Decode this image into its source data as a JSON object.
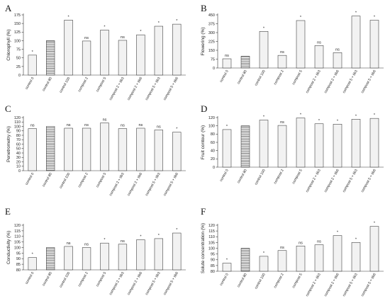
{
  "chart_data": [
    {
      "type": "bar",
      "panel": "A",
      "ylabel": "Chlorophyll (%)",
      "ylim": [
        0,
        175
      ],
      "yticks": [
        0,
        25,
        50,
        75,
        100,
        125,
        150,
        175
      ],
      "categories": [
        "control 0",
        "control 80",
        "control 100",
        "compost 2",
        "compost 5",
        "compost 2 + tib3",
        "compost 2 + tib6",
        "compost 5 + tib3",
        "compost 5 + tib6"
      ],
      "values": [
        58,
        100,
        160,
        99,
        131,
        101,
        117,
        142,
        148
      ],
      "significance": [
        "*",
        "",
        "*",
        "ns",
        "*",
        "ns",
        "*",
        "*",
        "*"
      ]
    },
    {
      "type": "bar",
      "panel": "B",
      "ylabel": "Flowering (%)",
      "ylim": [
        0,
        450
      ],
      "yticks": [
        0,
        75,
        150,
        225,
        300,
        375,
        450
      ],
      "categories": [
        "control 0",
        "control 80",
        "control 100",
        "compost 2",
        "compost 5",
        "compost 2 + tib3",
        "compost 2 + tib6",
        "compost 5 + tib3",
        "compost 5 + tib6"
      ],
      "values": [
        78,
        100,
        310,
        107,
        402,
        190,
        130,
        440,
        405
      ],
      "significance": [
        "ns",
        "",
        "*",
        "ns",
        "*",
        "ns",
        "ns",
        "*",
        "*"
      ]
    },
    {
      "type": "bar",
      "panel": "C",
      "ylabel": "Penetrometry (%)",
      "ylim": [
        0,
        120
      ],
      "yticks": [
        0,
        10,
        20,
        30,
        40,
        50,
        60,
        70,
        80,
        90,
        100,
        110,
        120
      ],
      "categories": [
        "control 0",
        "control 80",
        "control 100",
        "compost 2",
        "compost 5",
        "compost 2 + tib3",
        "compost 2 + tib6",
        "compost 5 + tib3",
        "compost 5 + tib6"
      ],
      "values": [
        95,
        100,
        96,
        96,
        108,
        95,
        96,
        92,
        87
      ],
      "significance": [
        "ns",
        "",
        "ns",
        "ns",
        "ns",
        "ns",
        "ns",
        "ns",
        "*"
      ]
    },
    {
      "type": "bar",
      "panel": "D",
      "ylabel": "Fruit contour (%)",
      "ylim": [
        0,
        120
      ],
      "yticks": [
        0,
        20,
        40,
        60,
        80,
        100,
        120
      ],
      "categories": [
        "control 0",
        "control 80",
        "control 100",
        "compost 2",
        "compost 5",
        "compost 2 + tib3",
        "compost 2 + tib6",
        "compost 5 + tib3",
        "compost 5 + tib6"
      ],
      "values": [
        91,
        100,
        114,
        101,
        119,
        105,
        104,
        116,
        118
      ],
      "significance": [
        "*",
        "",
        "*",
        "ns",
        "*",
        "*",
        "*",
        "*",
        "*"
      ]
    },
    {
      "type": "bar",
      "panel": "E",
      "ylabel": "Conductivity (%)",
      "ylim": [
        80,
        120
      ],
      "yticks": [
        80,
        85,
        90,
        95,
        100,
        105,
        110,
        115,
        120
      ],
      "categories": [
        "control 0",
        "control 80",
        "control 100",
        "compost 2",
        "compost 5",
        "compost 2 + tib3",
        "compost 2 + tib6",
        "compost 5 + tib3",
        "compost 5 + tib6"
      ],
      "values": [
        91,
        100,
        101,
        100,
        104,
        103,
        107,
        108,
        113
      ],
      "significance": [
        "*",
        "",
        "ns",
        "ns",
        "*",
        "ns",
        "*",
        "*",
        "*"
      ]
    },
    {
      "type": "bar",
      "panel": "F",
      "ylabel": "Solute concentration (%)",
      "ylim": [
        80,
        120
      ],
      "yticks": [
        80,
        85,
        90,
        95,
        100,
        105,
        110,
        115,
        120
      ],
      "categories": [
        "control 0",
        "control 80",
        "control 100",
        "compost 2",
        "compost 5",
        "compost 2 + tib3",
        "compost 2 + tib6",
        "compost 5 + tib3",
        "compost 5 + tib6"
      ],
      "values": [
        87,
        100,
        93,
        98,
        102,
        103,
        111,
        105,
        119
      ],
      "significance": [
        "*",
        "",
        "*",
        "ns",
        "ns",
        "ns",
        "*",
        "*",
        "*"
      ]
    }
  ],
  "colors": {
    "bar_fill": "#f2f2f2",
    "bar_stroke": "#333333",
    "reference_bar_pattern": "horizontal-hatch"
  }
}
